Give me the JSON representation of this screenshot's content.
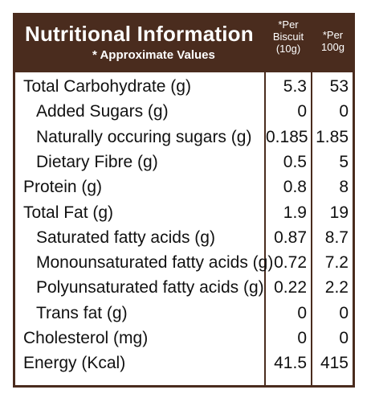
{
  "header": {
    "title": "Nutritional Information",
    "subtitle": "* Approximate Values",
    "col1": [
      "*Per",
      "Biscuit",
      "(10g)"
    ],
    "col2": [
      "*Per",
      "100g"
    ]
  },
  "rows": [
    {
      "label": "Total Carbohydrate (g)",
      "per_biscuit": "5.3",
      "per_100g": "53",
      "indent": 0
    },
    {
      "label": "Added Sugars (g)",
      "per_biscuit": "0",
      "per_100g": "0",
      "indent": 1
    },
    {
      "label": "Naturally occuring sugars (g)",
      "per_biscuit": "0.185",
      "per_100g": "1.85",
      "indent": 1
    },
    {
      "label": "Dietary Fibre (g)",
      "per_biscuit": "0.5",
      "per_100g": "5",
      "indent": 1
    },
    {
      "label": "Protein (g)",
      "per_biscuit": "0.8",
      "per_100g": "8",
      "indent": 0
    },
    {
      "label": "Total Fat (g)",
      "per_biscuit": "1.9",
      "per_100g": "19",
      "indent": 0
    },
    {
      "label": "Saturated fatty acids (g)",
      "per_biscuit": "0.87",
      "per_100g": "8.7",
      "indent": 1
    },
    {
      "label": "Monounsaturated fatty acids (g)",
      "per_biscuit": "0.72",
      "per_100g": "7.2",
      "indent": 1
    },
    {
      "label": "Polyunsaturated fatty acids (g)",
      "per_biscuit": "0.22",
      "per_100g": "2.2",
      "indent": 1
    },
    {
      "label": "Trans fat (g)",
      "per_biscuit": "0",
      "per_100g": "0",
      "indent": 1
    },
    {
      "label": "Cholesterol (mg)",
      "per_biscuit": "0",
      "per_100g": "0",
      "indent": 0
    },
    {
      "label": "Energy   (Kcal)",
      "per_biscuit": "41.5",
      "per_100g": "415",
      "indent": 0
    }
  ],
  "colors": {
    "header_bg": "#4a2c1e",
    "header_text": "#ffffff",
    "border": "#4a2c1e"
  }
}
